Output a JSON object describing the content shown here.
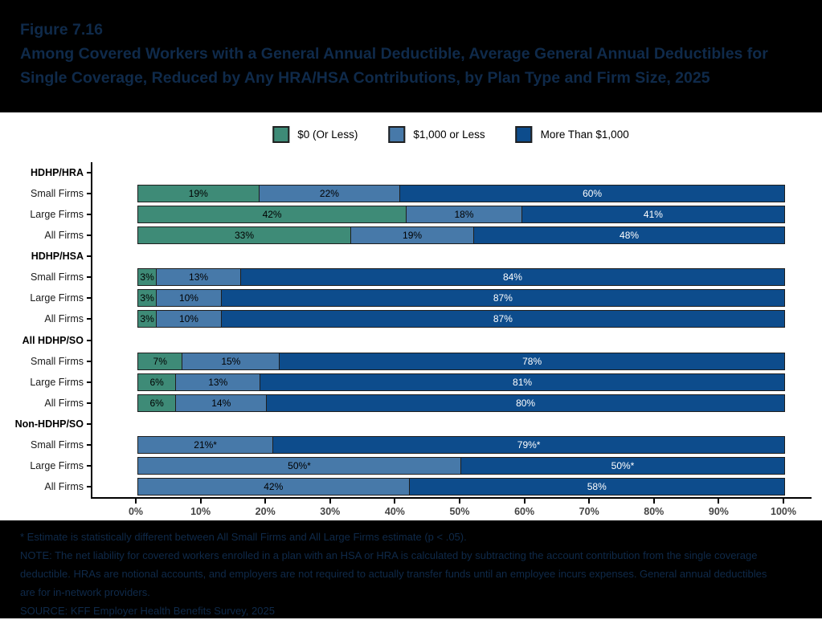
{
  "header": {
    "figure_label": "Figure 7.16",
    "title": "Among Covered Workers with a General Annual Deductible, Average General Annual Deductibles for Single Coverage, Reduced by Any HRA/HSA Contributions, by Plan Type and Firm Size, 2025"
  },
  "legend": {
    "items": [
      {
        "label": "$0 (Or Less)",
        "color": "#3E8B77"
      },
      {
        "label": "$1,000 or Less",
        "color": "#4779A9"
      },
      {
        "label": "More Than $1,000",
        "color": "#0D4C8C"
      }
    ]
  },
  "chart_data": {
    "type": "bar",
    "orientation": "horizontal_stacked",
    "stack_unit": "percent",
    "xlim": [
      0,
      100
    ],
    "x_ticks": [
      "0%",
      "10%",
      "20%",
      "30%",
      "40%",
      "50%",
      "60%",
      "70%",
      "80%",
      "90%",
      "100%"
    ],
    "series_names": [
      "$0 (Or Less)",
      "$1,000 or Less",
      "More Than $1,000"
    ],
    "series_colors": [
      "#3E8B77",
      "#4779A9",
      "#0D4C8C"
    ],
    "label_text_colors": [
      "#000000",
      "#000000",
      "#ffffff"
    ],
    "groups": [
      {
        "label": "HDHP/HRA",
        "rows": [
          {
            "label": "Small Firms",
            "values": [
              19,
              22,
              60
            ],
            "value_labels": [
              "19%",
              "22%",
              "60%"
            ]
          },
          {
            "label": "Large Firms",
            "values": [
              42,
              18,
              41
            ],
            "value_labels": [
              "42%",
              "18%",
              "41%"
            ]
          },
          {
            "label": "All Firms",
            "values": [
              33,
              19,
              48
            ],
            "value_labels": [
              "33%",
              "19%",
              "48%"
            ]
          }
        ]
      },
      {
        "label": "HDHP/HSA",
        "rows": [
          {
            "label": "Small Firms",
            "values": [
              3,
              13,
              84
            ],
            "value_labels": [
              "3%",
              "13%",
              "84%"
            ]
          },
          {
            "label": "Large Firms",
            "values": [
              3,
              10,
              87
            ],
            "value_labels": [
              "3%",
              "10%",
              "87%"
            ]
          },
          {
            "label": "All Firms",
            "values": [
              3,
              10,
              87
            ],
            "value_labels": [
              "3%",
              "10%",
              "87%"
            ]
          }
        ]
      },
      {
        "label": "All HDHP/SO",
        "rows": [
          {
            "label": "Small Firms",
            "values": [
              7,
              15,
              78
            ],
            "value_labels": [
              "7%",
              "15%",
              "78%"
            ]
          },
          {
            "label": "Large Firms",
            "values": [
              6,
              13,
              81
            ],
            "value_labels": [
              "6%",
              "13%",
              "81%"
            ]
          },
          {
            "label": "All Firms",
            "values": [
              6,
              14,
              80
            ],
            "value_labels": [
              "6%",
              "14%",
              "80%"
            ]
          }
        ]
      },
      {
        "label": "Non-HDHP/SO",
        "rows": [
          {
            "label": "Small Firms",
            "values": [
              0,
              21,
              79
            ],
            "value_labels": [
              "",
              "21%*",
              "79%*"
            ]
          },
          {
            "label": "Large Firms",
            "values": [
              0,
              50,
              50
            ],
            "value_labels": [
              "",
              "50%*",
              "50%*"
            ]
          },
          {
            "label": "All Firms",
            "values": [
              0,
              42,
              58
            ],
            "value_labels": [
              "",
              "42%",
              "58%"
            ]
          }
        ]
      }
    ]
  },
  "footnotes": {
    "asterisk_note": "* Estimate is statistically different between All Small Firms and All Large Firms estimate (p < .05).",
    "note": "NOTE: The net liability for covered workers enrolled in a plan with an HSA or HRA is calculated by subtracting the account contribution from the single coverage deductible. HRAs are notional accounts, and employers are not required to actually transfer funds until an employee incurs expenses. General annual deductibles are for in-network providers.",
    "source": "SOURCE: KFF Employer Health Benefits Survey, 2025"
  },
  "colors": {
    "band_background": "#000000",
    "band_text": "#0F2A4A",
    "chart_background": "#FFFFFF",
    "bar_border": "#1F1F1F",
    "axis_line": "#000000",
    "axis_tick_text": "#444444"
  }
}
